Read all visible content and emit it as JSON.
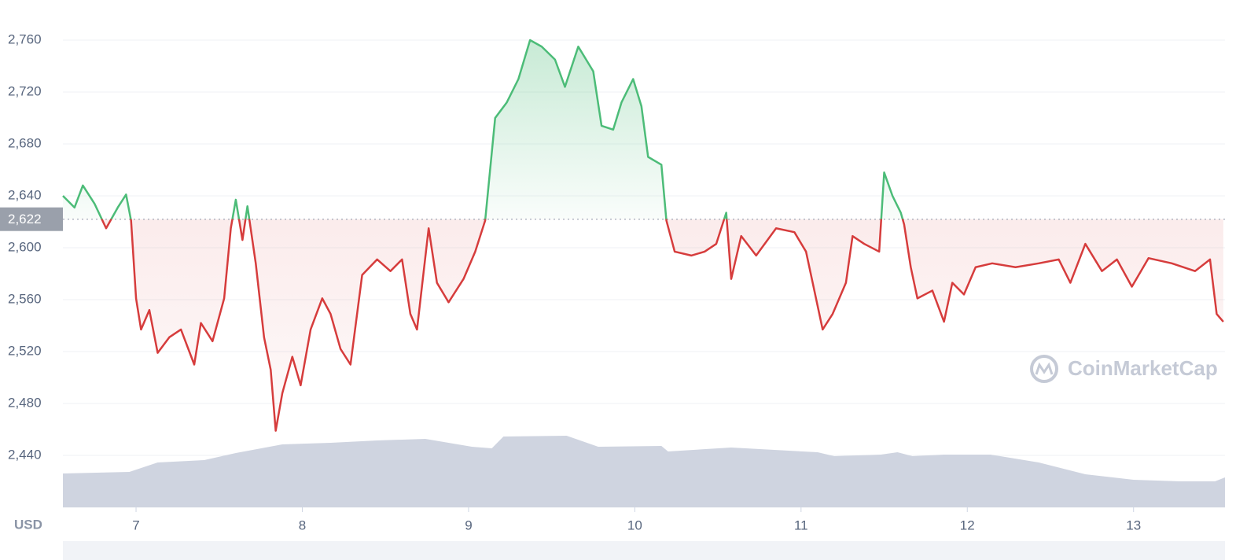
{
  "chart_data": {
    "type": "line",
    "x": [
      6.56,
      6.63,
      6.68,
      6.75,
      6.82,
      6.89,
      6.94,
      6.97,
      7.0,
      7.03,
      7.08,
      7.13,
      7.2,
      7.27,
      7.35,
      7.39,
      7.46,
      7.53,
      7.57,
      7.6,
      7.64,
      7.67,
      7.72,
      7.77,
      7.81,
      7.84,
      7.88,
      7.94,
      7.99,
      8.05,
      8.12,
      8.17,
      8.23,
      8.29,
      8.36,
      8.45,
      8.53,
      8.6,
      8.65,
      8.69,
      8.76,
      8.81,
      8.88,
      8.97,
      9.04,
      9.1,
      9.16,
      9.23,
      9.3,
      9.37,
      9.44,
      9.52,
      9.58,
      9.66,
      9.75,
      9.8,
      9.87,
      9.92,
      9.99,
      10.04,
      10.08,
      10.16,
      10.19,
      10.24,
      10.34,
      10.42,
      10.49,
      10.55,
      10.58,
      10.64,
      10.73,
      10.85,
      10.96,
      11.03,
      11.07,
      11.13,
      11.19,
      11.27,
      11.31,
      11.38,
      11.47,
      11.5,
      11.55,
      11.6,
      11.62,
      11.66,
      11.7,
      11.79,
      11.86,
      11.91,
      11.98,
      12.05,
      12.15,
      12.29,
      12.43,
      12.55,
      12.62,
      12.71,
      12.81,
      12.9,
      12.99,
      13.09,
      13.23,
      13.37,
      13.46,
      13.5,
      13.54
    ],
    "values": [
      2640,
      2631,
      2648,
      2634,
      2615,
      2631,
      2641,
      2621,
      2561,
      2537,
      2552,
      2519,
      2531,
      2537,
      2510,
      2542,
      2528,
      2561,
      2615,
      2637,
      2606,
      2632,
      2588,
      2531,
      2506,
      2459,
      2488,
      2516,
      2494,
      2537,
      2561,
      2549,
      2522,
      2510,
      2579,
      2591,
      2582,
      2591,
      2549,
      2537,
      2615,
      2573,
      2558,
      2576,
      2597,
      2621,
      2700,
      2712,
      2730,
      2760,
      2755,
      2745,
      2724,
      2755,
      2736,
      2694,
      2691,
      2712,
      2730,
      2709,
      2670,
      2664,
      2621,
      2597,
      2594,
      2597,
      2603,
      2627,
      2576,
      2609,
      2594,
      2615,
      2612,
      2597,
      2573,
      2537,
      2549,
      2573,
      2609,
      2603,
      2597,
      2658,
      2640,
      2627,
      2618,
      2585,
      2561,
      2567,
      2543,
      2573,
      2564,
      2585,
      2588,
      2585,
      2588,
      2591,
      2573,
      2603,
      2582,
      2591,
      2570,
      2592,
      2588,
      2582,
      2591,
      2549,
      2543
    ],
    "up_color": "#4cbc78",
    "down_color": "#d63c3c",
    "reference": {
      "value": 2622,
      "label": "2,622"
    },
    "volume": {
      "x": [
        6.56,
        6.96,
        7.13,
        7.41,
        7.6,
        7.88,
        8.17,
        8.45,
        8.74,
        9.02,
        9.14,
        9.21,
        9.59,
        9.78,
        10.16,
        10.2,
        10.58,
        11.1,
        11.2,
        11.48,
        11.58,
        11.67,
        11.86,
        12.14,
        12.43,
        12.71,
        13.0,
        13.28,
        13.49,
        13.55
      ],
      "values": [
        43,
        45,
        57,
        60,
        69,
        80,
        82,
        85,
        87,
        77,
        75,
        90,
        91,
        77,
        78,
        71,
        76,
        70,
        65,
        67,
        70,
        65,
        67,
        67,
        57,
        42,
        35,
        33,
        33,
        38
      ],
      "ylim": [
        0,
        100
      ],
      "color": "#cfd4e0"
    },
    "xlim": [
      6.56,
      13.55
    ],
    "ylim": [
      2400,
      2780
    ],
    "xticks": [
      7,
      8,
      9,
      10,
      11,
      12,
      13
    ],
    "yticks": [
      {
        "value": 2440,
        "label": "2,440"
      },
      {
        "value": 2480,
        "label": "2,480"
      },
      {
        "value": 2520,
        "label": "2,520"
      },
      {
        "value": 2560,
        "label": "2,560"
      },
      {
        "value": 2600,
        "label": "2,600"
      },
      {
        "value": 2640,
        "label": "2,640"
      },
      {
        "value": 2680,
        "label": "2,680"
      },
      {
        "value": 2720,
        "label": "2,720"
      },
      {
        "value": 2760,
        "label": "2,760"
      }
    ],
    "grid": true,
    "currency_label": "USD",
    "watermark": "CoinMarketCap"
  }
}
